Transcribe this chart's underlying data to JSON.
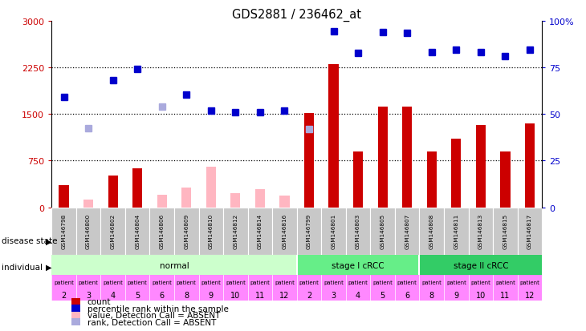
{
  "title": "GDS2881 / 236462_at",
  "samples": [
    "GSM146798",
    "GSM146800",
    "GSM146802",
    "GSM146804",
    "GSM146806",
    "GSM146809",
    "GSM146810",
    "GSM146812",
    "GSM146814",
    "GSM146816",
    "GSM146799",
    "GSM146801",
    "GSM146803",
    "GSM146805",
    "GSM146807",
    "GSM146808",
    "GSM146811",
    "GSM146813",
    "GSM146815",
    "GSM146817"
  ],
  "count_values": [
    350,
    120,
    510,
    630,
    200,
    320,
    650,
    230,
    290,
    195,
    1520,
    2300,
    900,
    1620,
    1620,
    900,
    1100,
    1320,
    900,
    1350
  ],
  "count_absent": [
    false,
    true,
    false,
    false,
    true,
    true,
    true,
    true,
    true,
    true,
    false,
    false,
    false,
    false,
    false,
    false,
    false,
    false,
    false,
    false
  ],
  "rank_values": [
    1780,
    1270,
    2040,
    2230,
    1620,
    1810,
    1550,
    1530,
    1530,
    1560,
    1260,
    2830,
    2480,
    2820,
    2810,
    2490,
    2540,
    2490,
    2430,
    2540
  ],
  "rank_absent": [
    false,
    true,
    false,
    false,
    true,
    false,
    false,
    false,
    false,
    false,
    true,
    false,
    false,
    false,
    false,
    false,
    false,
    false,
    false,
    false
  ],
  "ylim_left": [
    0,
    3000
  ],
  "yticks_left": [
    0,
    750,
    1500,
    2250,
    3000
  ],
  "ylim_right": [
    0,
    100
  ],
  "yticks_right": [
    0,
    25,
    50,
    75,
    100
  ],
  "count_color_present": "#CC0000",
  "count_color_absent": "#FFB6C1",
  "rank_color_present": "#0000CC",
  "rank_color_absent": "#AAAADD",
  "tick_color_left": "#CC0000",
  "tick_color_right": "#0000CC",
  "disease_groups": [
    {
      "label": "normal",
      "start": 0,
      "end": 9,
      "color": "#CCFFCC"
    },
    {
      "label": "stage I cRCC",
      "start": 10,
      "end": 14,
      "color": "#66EE88"
    },
    {
      "label": "stage II cRCC",
      "start": 15,
      "end": 19,
      "color": "#33CC66"
    }
  ],
  "individual_labels_top": [
    "patient",
    "patient",
    "patient",
    "patient",
    "patient",
    "patient",
    "patient",
    "patient",
    "patient",
    "patient",
    "patient",
    "patient",
    "patient",
    "patient",
    "patient",
    "patient",
    "patient",
    "patient",
    "patient",
    "patient"
  ],
  "individual_labels_bot": [
    "2",
    "3",
    "4",
    "5",
    "6",
    "8",
    "9",
    "10",
    "11",
    "12",
    "2",
    "3",
    "4",
    "5",
    "6",
    "8",
    "9",
    "10",
    "11",
    "12"
  ],
  "individual_bg": "#FF88FF",
  "sample_box_color": "#C8C8C8",
  "sample_box_edge": "#FFFFFF"
}
